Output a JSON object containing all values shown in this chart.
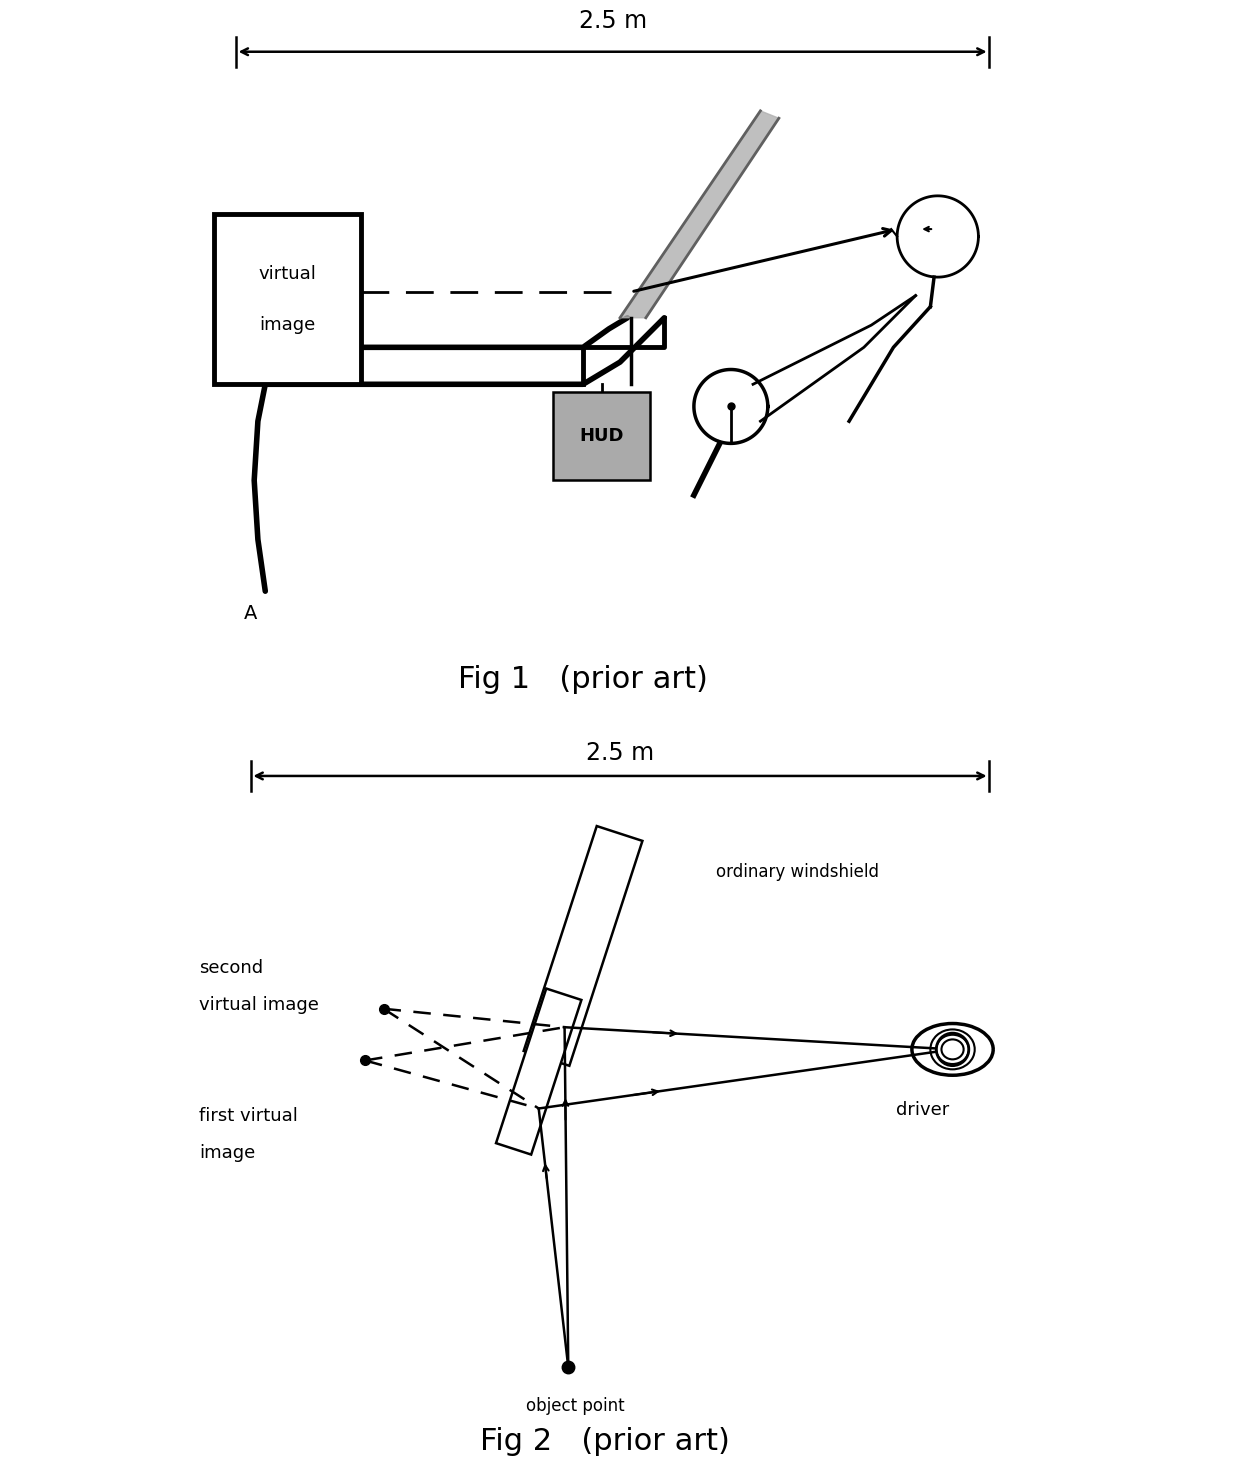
{
  "fig1_title": "Fig 1   (prior art)",
  "fig2_title": "Fig 2   (prior art)",
  "measurement_label": "2.5 m",
  "background_color": "#ffffff",
  "line_color": "#000000",
  "gray_color": "#888888",
  "dark_gray": "#666666",
  "hud_gray": "#aaaaaa"
}
